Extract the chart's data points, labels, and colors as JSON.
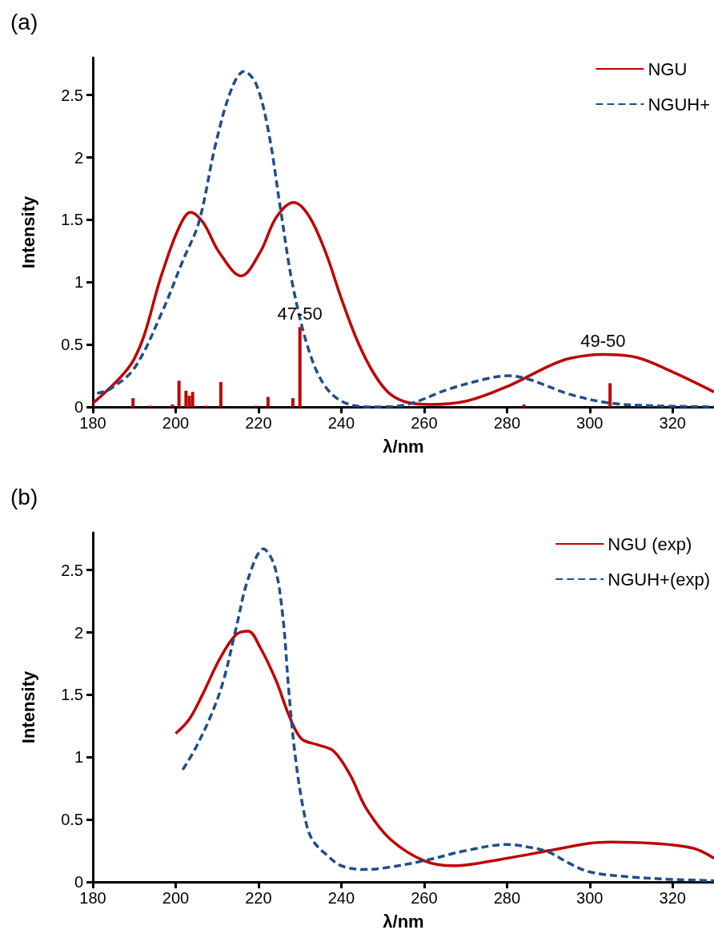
{
  "chart_data": [
    {
      "type": "line",
      "title": "(a)",
      "xlabel": "λ/nm",
      "ylabel": "Intensity",
      "xlim": [
        180,
        330
      ],
      "xticks": [
        180,
        200,
        220,
        240,
        260,
        280,
        300,
        320
      ],
      "ylim": [
        0,
        2.8
      ],
      "yticks": [
        0,
        0.5,
        1,
        1.5,
        2,
        2.5
      ],
      "legend": "top right",
      "grid": false,
      "marker": "none",
      "series": [
        {
          "name": "NGU",
          "color": "#c00000",
          "line_style": "solid",
          "x": [
            180,
            189.9,
            196.7,
            200.7,
            203.6,
            206.6,
            210.5,
            215.8,
            220.4,
            224.3,
            228.5,
            232.2,
            236.2,
            240.1,
            244,
            248,
            251.9,
            256.8,
            261.8,
            270.6,
            280.5,
            290.3,
            295.3,
            303.2,
            311,
            320,
            330
          ],
          "values": [
            0.03,
            0.38,
            1.07,
            1.43,
            1.56,
            1.48,
            1.24,
            1.05,
            1.24,
            1.52,
            1.64,
            1.53,
            1.24,
            0.86,
            0.52,
            0.26,
            0.1,
            0.03,
            0.02,
            0.05,
            0.17,
            0.33,
            0.39,
            0.42,
            0.4,
            0.28,
            0.12
          ]
        },
        {
          "name": "NGUH+",
          "color": "#1f4e8c",
          "line_style": "dashed",
          "x": [
            181,
            184,
            190,
            196.7,
            201.7,
            205.6,
            209.6,
            213.5,
            216.5,
            219.4,
            222.4,
            225.3,
            228.3,
            232.2,
            236.2,
            241.1,
            248,
            255.9,
            265.7,
            275.6,
            280.5,
            285.4,
            295.3,
            305.1,
            315,
            330
          ],
          "values": [
            0.11,
            0.14,
            0.31,
            0.76,
            1.17,
            1.48,
            2.1,
            2.55,
            2.69,
            2.59,
            2.21,
            1.59,
            0.97,
            0.45,
            0.16,
            0.03,
            0,
            0.02,
            0.14,
            0.23,
            0.25,
            0.22,
            0.1,
            0.03,
            0.01,
            0
          ]
        },
        {
          "type": "bar",
          "color": "#c00000",
          "x": [
            189.7,
            193.8,
            199.2,
            200.8,
            202.5,
            203.3,
            204.1,
            207.3,
            210.9,
            219.4,
            222.3,
            228.3,
            230,
            284.1,
            304.9
          ],
          "values": [
            0.07,
            0.01,
            0.02,
            0.21,
            0.13,
            0.09,
            0.12,
            0.01,
            0.2,
            0.01,
            0.08,
            0.07,
            0.64,
            0.02,
            0.19
          ]
        }
      ],
      "annotations": [
        {
          "text": "47-50",
          "x": 230,
          "y": 0.64
        },
        {
          "text": "49-50",
          "x": 303.2,
          "y": 0.42
        }
      ]
    },
    {
      "type": "line",
      "title": "(b)",
      "xlabel": "λ/nm",
      "ylabel": "Intensity",
      "xlim": [
        180,
        330
      ],
      "xticks": [
        180,
        200,
        220,
        240,
        260,
        280,
        300,
        320
      ],
      "ylim": [
        0,
        2.8
      ],
      "yticks": [
        0,
        0.5,
        1,
        1.5,
        2,
        2.5
      ],
      "legend": "top right",
      "grid": false,
      "marker": "none",
      "series": [
        {
          "name": "NGU (exp)",
          "color": "#c00000",
          "line_style": "solid",
          "x": [
            200,
            203.2,
            206.6,
            210.5,
            214.5,
            217.5,
            220.4,
            224.3,
            227.3,
            230.3,
            234.2,
            238.1,
            242.1,
            246,
            251.9,
            260,
            267,
            280,
            290,
            300,
            305,
            315,
            325,
            330
          ],
          "values": [
            1.19,
            1.3,
            1.51,
            1.78,
            1.98,
            2.01,
            1.88,
            1.61,
            1.34,
            1.15,
            1.1,
            1.05,
            0.86,
            0.59,
            0.34,
            0.17,
            0.13,
            0.19,
            0.25,
            0.31,
            0.32,
            0.31,
            0.27,
            0.19
          ]
        },
        {
          "name": "NGUH+(exp)",
          "color": "#1f4e8c",
          "line_style": "dashed",
          "x": [
            201.7,
            204.6,
            208.6,
            211.5,
            214.5,
            217.5,
            221.2,
            223.9,
            225.9,
            227.3,
            228.8,
            230.8,
            232.8,
            237,
            240,
            245,
            250,
            260,
            270,
            280,
            285,
            290,
            295,
            300,
            310,
            320,
            330
          ],
          "values": [
            0.9,
            1.06,
            1.34,
            1.61,
            2.02,
            2.43,
            2.67,
            2.53,
            2.12,
            1.54,
            1.03,
            0.59,
            0.35,
            0.2,
            0.13,
            0.1,
            0.11,
            0.17,
            0.25,
            0.3,
            0.28,
            0.24,
            0.15,
            0.08,
            0.04,
            0.02,
            0.01
          ]
        }
      ]
    }
  ]
}
